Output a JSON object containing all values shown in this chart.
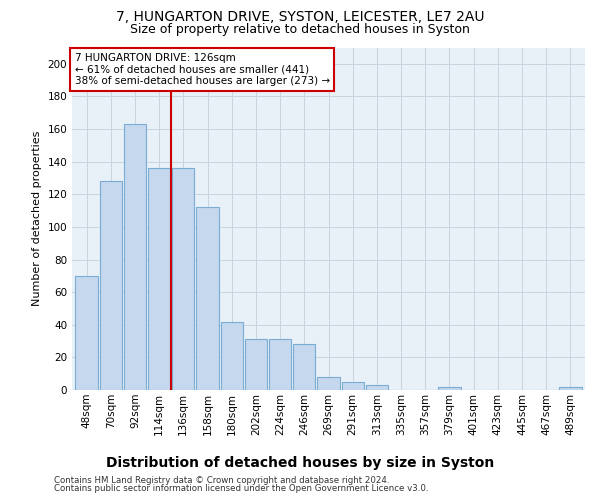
{
  "title1": "7, HUNGARTON DRIVE, SYSTON, LEICESTER, LE7 2AU",
  "title2": "Size of property relative to detached houses in Syston",
  "xlabel": "Distribution of detached houses by size in Syston",
  "ylabel": "Number of detached properties",
  "bar_labels": [
    "48sqm",
    "70sqm",
    "92sqm",
    "114sqm",
    "136sqm",
    "158sqm",
    "180sqm",
    "202sqm",
    "224sqm",
    "246sqm",
    "269sqm",
    "291sqm",
    "313sqm",
    "335sqm",
    "357sqm",
    "379sqm",
    "401sqm",
    "423sqm",
    "445sqm",
    "467sqm",
    "489sqm"
  ],
  "bar_values": [
    70,
    128,
    163,
    136,
    136,
    112,
    42,
    31,
    31,
    28,
    8,
    5,
    3,
    0,
    0,
    2,
    0,
    0,
    0,
    0,
    2
  ],
  "bar_color": "#c5d8ee",
  "bar_edge_color": "#7aadd4",
  "vline_color": "#cc0000",
  "vline_x": 125,
  "annotation_line1": "7 HUNGARTON DRIVE: 126sqm",
  "annotation_line2": "← 61% of detached houses are smaller (441)",
  "annotation_line3": "38% of semi-detached houses are larger (273) →",
  "annotation_box_color": "#cc0000",
  "ylim": [
    0,
    210
  ],
  "yticks": [
    0,
    20,
    40,
    60,
    80,
    100,
    120,
    140,
    160,
    180,
    200
  ],
  "grid_color": "#c8d4e0",
  "bg_color": "#e8f0f8",
  "footer1": "Contains HM Land Registry data © Crown copyright and database right 2024.",
  "footer2": "Contains public sector information licensed under the Open Government Licence v3.0.",
  "title1_fontsize": 10,
  "title2_fontsize": 9,
  "ylabel_fontsize": 8,
  "xlabel_fontsize": 10,
  "tick_fontsize": 7.5,
  "footer_fontsize": 6.2
}
